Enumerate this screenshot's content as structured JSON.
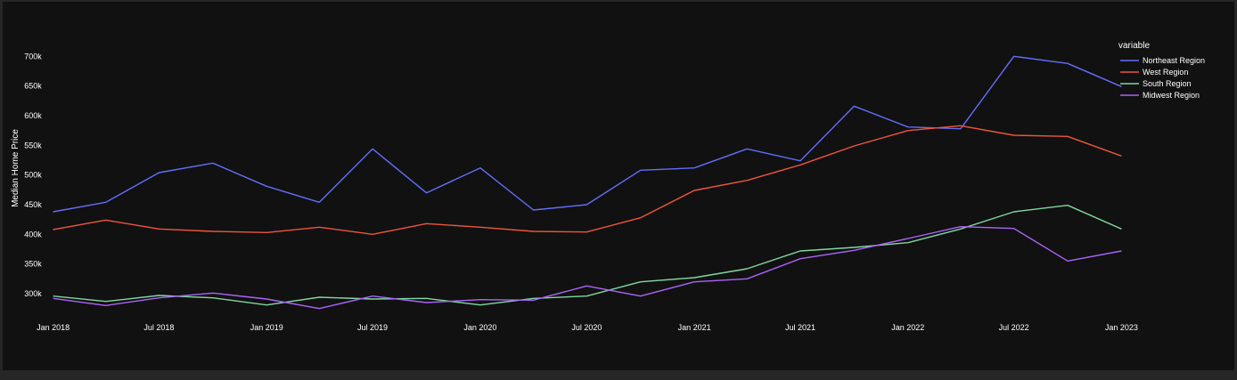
{
  "chart_data": {
    "type": "line",
    "ylabel": "Median Home Price",
    "xlabel": "",
    "legend": {
      "title": "variable",
      "placement": "top-right"
    },
    "grid": false,
    "x": [
      "2018-01",
      "2018-04",
      "2018-07",
      "2018-10",
      "2019-01",
      "2019-04",
      "2019-07",
      "2019-10",
      "2020-01",
      "2020-04",
      "2020-07",
      "2020-10",
      "2021-01",
      "2021-04",
      "2021-07",
      "2021-10",
      "2022-01",
      "2022-04",
      "2022-07",
      "2022-10",
      "2023-01"
    ],
    "xlim": [
      "2017-12-25",
      "2023-01-08"
    ],
    "ylim": [
      252000,
      732000
    ],
    "y_ticks": [
      300000,
      350000,
      400000,
      450000,
      500000,
      550000,
      600000,
      650000,
      700000
    ],
    "y_tick_labels": [
      "300k",
      "350k",
      "400k",
      "450k",
      "500k",
      "550k",
      "600k",
      "650k",
      "700k"
    ],
    "x_ticks": [
      "2018-01",
      "2018-07",
      "2019-01",
      "2019-07",
      "2020-01",
      "2020-07",
      "2021-01",
      "2021-07",
      "2022-01",
      "2022-07",
      "2023-01"
    ],
    "x_tick_labels": [
      "Jan 2018",
      "Jul 2018",
      "Jan 2019",
      "Jul 2019",
      "Jan 2020",
      "Jul 2020",
      "Jan 2021",
      "Jul 2021",
      "Jan 2022",
      "Jul 2022",
      "Jan 2023"
    ],
    "series": [
      {
        "name": "Northeast Region",
        "color": "#636efa",
        "values": [
          438000,
          454000,
          504000,
          520000,
          481000,
          454000,
          544000,
          470000,
          512000,
          441000,
          450000,
          508000,
          512000,
          544000,
          524000,
          616000,
          581000,
          578000,
          700000,
          688000,
          649000
        ]
      },
      {
        "name": "West Region",
        "color": "#ef553b",
        "values": [
          408000,
          424000,
          409000,
          405000,
          403000,
          412000,
          400000,
          418000,
          412000,
          405000,
          404000,
          428000,
          474000,
          491000,
          517000,
          549000,
          575000,
          583000,
          567000,
          565000,
          532000
        ]
      },
      {
        "name": "South Region",
        "color": "#7fd8a0",
        "values": [
          296000,
          287000,
          297000,
          293000,
          281000,
          294000,
          291000,
          292000,
          281000,
          292000,
          296000,
          320000,
          327000,
          342000,
          372000,
          378000,
          386000,
          409000,
          438000,
          449000,
          409000
        ]
      },
      {
        "name": "Midwest Region",
        "color": "#ab63fa",
        "values": [
          292000,
          280000,
          293000,
          301000,
          291000,
          275000,
          296000,
          285000,
          290000,
          289000,
          313000,
          296000,
          320000,
          325000,
          359000,
          373000,
          393000,
          413000,
          410000,
          355000,
          372000
        ]
      }
    ]
  }
}
